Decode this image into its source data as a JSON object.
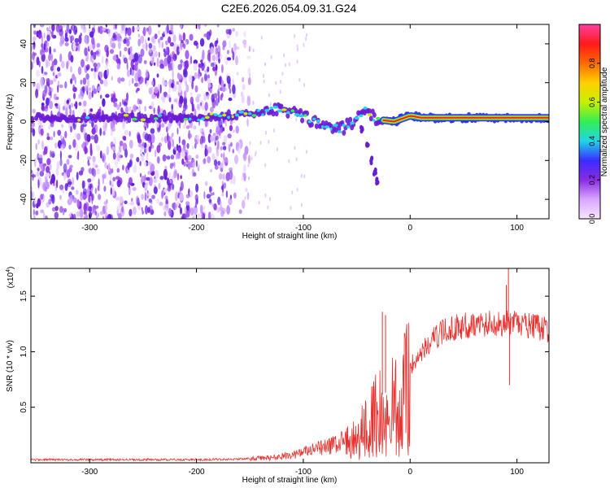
{
  "title": "C2E6.2026.054.09.31.G24",
  "colors": {
    "snr_line": "#e8312e",
    "trace_core": "#ff1a1a",
    "scatter": "#8a2be2"
  },
  "chart_data": [
    {
      "type": "heatmap",
      "name": "spectrogram",
      "xlabel": "Height of straight line (km)",
      "ylabel": "Frequency (Hz)",
      "xlim": [
        -355,
        130
      ],
      "ylim": [
        -50,
        50
      ],
      "xticks": [
        -300,
        -200,
        -100,
        0,
        100
      ],
      "yticks": [
        -40,
        -20,
        0,
        20,
        40
      ],
      "colorbar": {
        "label": "Normalized spectral amplitude",
        "range": [
          0,
          1
        ],
        "ticks": [
          "0.0",
          "0.2",
          "0.4",
          "0.6",
          "0.8"
        ],
        "tick_values": [
          0.0,
          0.2,
          0.4,
          0.6,
          0.8
        ],
        "colormap": [
          "#f7e6ff",
          "#d9a6ff",
          "#8a2be2",
          "#3b2bff",
          "#1fd6e8",
          "#33ee55",
          "#c8f000",
          "#ffd000",
          "#ff6a00",
          "#ff1a1a",
          "#ff3fa0"
        ]
      },
      "noise_region": {
        "x": [
          -355,
          -150
        ],
        "y": [
          -50,
          50
        ]
      },
      "ridge": [
        {
          "x": -350,
          "y": 2
        },
        {
          "x": -300,
          "y": 2
        },
        {
          "x": -250,
          "y": 2
        },
        {
          "x": -200,
          "y": 2
        },
        {
          "x": -170,
          "y": 3
        },
        {
          "x": -150,
          "y": 4
        },
        {
          "x": -125,
          "y": 6
        },
        {
          "x": -110,
          "y": 5
        },
        {
          "x": -95,
          "y": 1
        },
        {
          "x": -80,
          "y": -2
        },
        {
          "x": -65,
          "y": -4
        },
        {
          "x": -50,
          "y": 1
        },
        {
          "x": -42,
          "y": 6
        },
        {
          "x": -38,
          "y": 3
        },
        {
          "x": -30,
          "y": 1
        },
        {
          "x": -15,
          "y": 0
        },
        {
          "x": -5,
          "y": 2
        },
        {
          "x": 0,
          "y": 3
        },
        {
          "x": 10,
          "y": 2
        },
        {
          "x": 30,
          "y": 2
        },
        {
          "x": 60,
          "y": 2
        },
        {
          "x": 90,
          "y": 2
        },
        {
          "x": 130,
          "y": 2
        }
      ],
      "branch": [
        {
          "x": -45,
          "y": -5
        },
        {
          "x": -40,
          "y": -12
        },
        {
          "x": -36,
          "y": -20
        },
        {
          "x": -33,
          "y": -26
        },
        {
          "x": -31,
          "y": -30
        }
      ]
    },
    {
      "type": "line",
      "name": "snr",
      "xlabel": "Height of straight line (km)",
      "ylabel": "SNR (10 * v/v)",
      "multiplier": "(x10",
      "multiplier_exp": "4",
      "multiplier_close": ")",
      "xlim": [
        -355,
        130
      ],
      "ylim": [
        0,
        1.75
      ],
      "xticks": [
        -300,
        -200,
        -100,
        0,
        100
      ],
      "yticks": [
        "0.5",
        "1.0",
        "1.5"
      ],
      "ytick_values": [
        0.5,
        1.0,
        1.5
      ],
      "series": [
        {
          "name": "SNR",
          "envelope": [
            {
              "x": -355,
              "y": 0.03
            },
            {
              "x": -200,
              "y": 0.03
            },
            {
              "x": -160,
              "y": 0.035
            },
            {
              "x": -130,
              "y": 0.05
            },
            {
              "x": -110,
              "y": 0.08
            },
            {
              "x": -90,
              "y": 0.13
            },
            {
              "x": -70,
              "y": 0.18
            },
            {
              "x": -55,
              "y": 0.25
            },
            {
              "x": -45,
              "y": 0.35
            },
            {
              "x": -35,
              "y": 0.5
            },
            {
              "x": -28,
              "y": 0.6
            },
            {
              "x": -20,
              "y": 0.65
            },
            {
              "x": -10,
              "y": 0.72
            },
            {
              "x": 0,
              "y": 0.88
            },
            {
              "x": 10,
              "y": 1.0
            },
            {
              "x": 20,
              "y": 1.12
            },
            {
              "x": 30,
              "y": 1.2
            },
            {
              "x": 45,
              "y": 1.25
            },
            {
              "x": 60,
              "y": 1.27
            },
            {
              "x": 80,
              "y": 1.28
            },
            {
              "x": 100,
              "y": 1.27
            },
            {
              "x": 115,
              "y": 1.25
            },
            {
              "x": 130,
              "y": 1.22
            }
          ],
          "spikes": [
            {
              "x": -26,
              "y": 1.36
            },
            {
              "x": -23,
              "y": 1.33
            },
            {
              "x": 90,
              "y": 1.6
            },
            {
              "x": 92,
              "y": 1.75
            },
            {
              "x": 93,
              "y": 0.7
            }
          ]
        }
      ]
    }
  ]
}
